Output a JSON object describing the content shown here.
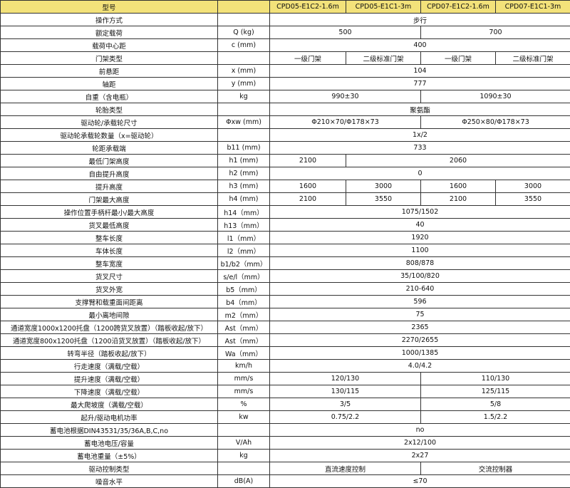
{
  "header": {
    "label": "型号",
    "models": [
      "CPD05-E1C2-1.6m",
      "CPD05-E1C1-3m",
      "CPD07-E1C2-1.6m",
      "CPD07-E1C1-3m"
    ]
  },
  "rows": [
    {
      "label": "操作方式",
      "values": [
        "步行"
      ]
    },
    {
      "label": "额定载荷",
      "unit": "Q (kg)",
      "values": [
        "500",
        "700"
      ]
    },
    {
      "label": "载荷中心距",
      "unit": "c (mm)",
      "values": [
        "400"
      ]
    },
    {
      "label": "门架类型",
      "values": [
        "一级门架",
        "二级标准门架",
        "一级门架",
        "二级标准门架"
      ]
    },
    {
      "label": "前悬距",
      "unit": "x (mm)",
      "values": [
        "104"
      ]
    },
    {
      "label": "轴距",
      "unit": "y (mm)",
      "values": [
        "777"
      ]
    },
    {
      "label": "自重（含电瓶）",
      "unit": "kg",
      "values": [
        "990±30",
        "1090±30"
      ]
    },
    {
      "label": "轮胎类型",
      "values": [
        "聚氨酯"
      ]
    },
    {
      "label": "驱动轮/承载轮尺寸",
      "unit": "Φxw (mm)",
      "values": [
        "Φ210×70/Φ178×73",
        "Φ250×80/Φ178×73"
      ]
    },
    {
      "label": "驱动轮承载轮数量（x=驱动轮）",
      "values": [
        "1x/2"
      ]
    },
    {
      "label": "轮距承载端",
      "unit": "b11 (mm)",
      "values": [
        "733"
      ]
    },
    {
      "label": "最低门架高度",
      "unit": "h1 (mm)",
      "values": [
        "2100",
        "2060"
      ]
    },
    {
      "label": "自由提升高度",
      "unit": "h2 (mm)",
      "values": [
        "0"
      ]
    },
    {
      "label": "提升高度",
      "unit": "h3 (mm)",
      "values": [
        "1600",
        "3000",
        "1600",
        "3000"
      ]
    },
    {
      "label": "门架最大高度",
      "unit": "h4 (mm)",
      "values": [
        "2100",
        "3550",
        "2100",
        "3550"
      ]
    },
    {
      "label": "操作位置手柄杆最小/最大高度",
      "unit": "h14（mm）",
      "values": [
        "1075/1502"
      ]
    },
    {
      "label": "货叉最低高度",
      "unit": "h13（mm）",
      "values": [
        "40"
      ]
    },
    {
      "label": "整车长度",
      "unit": "l1（mm）",
      "values": [
        "1920"
      ]
    },
    {
      "label": "车体长度",
      "unit": "l2（mm）",
      "values": [
        "1100"
      ]
    },
    {
      "label": "整车宽度",
      "unit": "b1/b2（mm）",
      "values": [
        "808/878"
      ]
    },
    {
      "label": "货叉尺寸",
      "unit": "s/e/l（mm）",
      "values": [
        "35/100/820"
      ]
    },
    {
      "label": "货叉外宽",
      "unit": "b5（mm）",
      "values": [
        "210-640"
      ]
    },
    {
      "label": "支撑臂和载重面间距离",
      "unit": "b4（mm）",
      "values": [
        "596"
      ]
    },
    {
      "label": "最小离地间隙",
      "unit": "m2（mm）",
      "values": [
        "75"
      ]
    },
    {
      "label": "通道宽度1000x1200托盘（1200跨货叉放置）（踏板收起/放下）",
      "unit": "Ast（mm）",
      "values": [
        "2365"
      ]
    },
    {
      "label": "通道宽度800x1200托盘（1200沿货叉放置）（踏板收起/放下）",
      "unit": "Ast（mm）",
      "values": [
        "2270/2655"
      ]
    },
    {
      "label": "转弯半径（踏板收起/放下）",
      "unit": "Wa（mm）",
      "values": [
        "1000/1385"
      ]
    },
    {
      "label": "行走速度（满载/空载）",
      "unit": "km/h",
      "values": [
        "4.0/4.2"
      ]
    },
    {
      "label": "提升速度（满载/空载）",
      "unit": "mm/s",
      "values": [
        "120/130",
        "110/130"
      ]
    },
    {
      "label": "下降速度（满载/空载）",
      "unit": "mm/s",
      "values": [
        "130/115",
        "125/115"
      ]
    },
    {
      "label": "最大爬坡度（满载/空载）",
      "unit": "%",
      "values": [
        "3/5",
        "5/8"
      ]
    },
    {
      "label": "起升/驱动电机功率",
      "unit": "kw",
      "values": [
        "0.75/2.2",
        "1.5/2.2"
      ]
    },
    {
      "label": "蓄电池根据DIN43531/35/36A,B,C,no",
      "values": [
        "no"
      ]
    },
    {
      "label": "蓄电池电压/容量",
      "unit": "V/Ah",
      "values": [
        "2x12/100"
      ]
    },
    {
      "label": "蓄电池重量（±5%）",
      "unit": "kg",
      "values": [
        "2x27"
      ]
    },
    {
      "label": "驱动控制类型",
      "values": [
        "直流速度控制",
        "交流控制器"
      ]
    },
    {
      "label": "噪音水平",
      "unit": "dB(A)",
      "values": [
        "≤70"
      ]
    }
  ]
}
